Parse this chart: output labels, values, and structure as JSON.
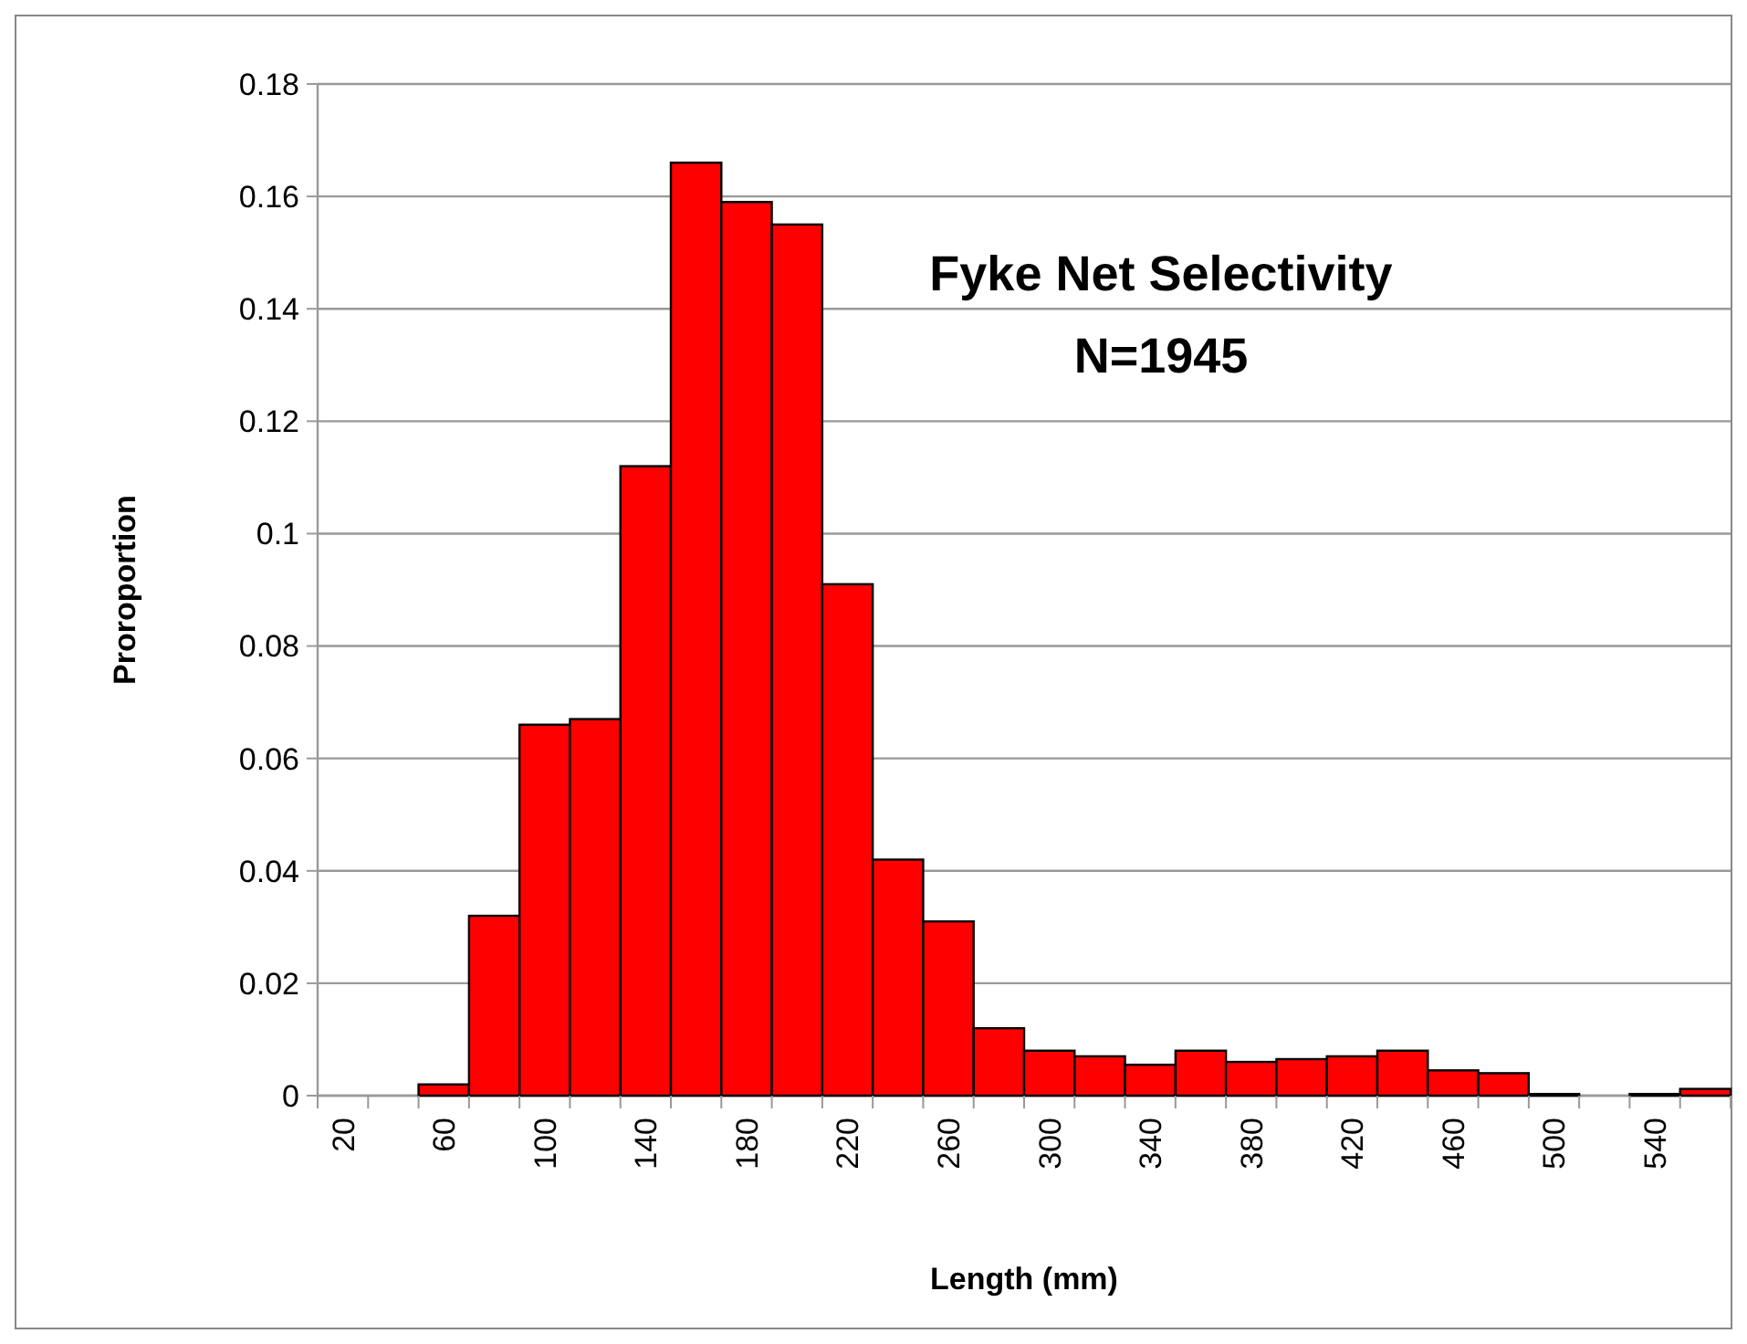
{
  "chart_data": {
    "type": "bar",
    "title": "Fyke Net Selectivity",
    "subtitle": "N=1945",
    "xlabel": "Length (mm)",
    "ylabel": "Proroportion",
    "categories": [
      "20",
      null,
      "60",
      null,
      "100",
      null,
      "140",
      null,
      "180",
      null,
      "220",
      null,
      "260",
      null,
      "300",
      null,
      "340",
      null,
      "380",
      null,
      "420",
      null,
      "460",
      null,
      "500",
      null,
      "540",
      null
    ],
    "values": [
      0,
      0,
      0.002,
      0.032,
      0.066,
      0.067,
      0.112,
      0.166,
      0.159,
      0.155,
      0.091,
      0.042,
      0.031,
      0.012,
      0.008,
      0.007,
      0.0055,
      0.008,
      0.006,
      0.0065,
      0.007,
      0.008,
      0.0045,
      0.004,
      0.0003,
      0,
      0.0003,
      0.0012
    ],
    "color": "#ff0000",
    "ylim": [
      0,
      0.18
    ],
    "yticks": [
      0,
      0.02,
      0.04,
      0.06,
      0.08,
      0.1,
      0.12,
      0.14,
      0.16,
      0.18
    ],
    "grid": "y"
  }
}
